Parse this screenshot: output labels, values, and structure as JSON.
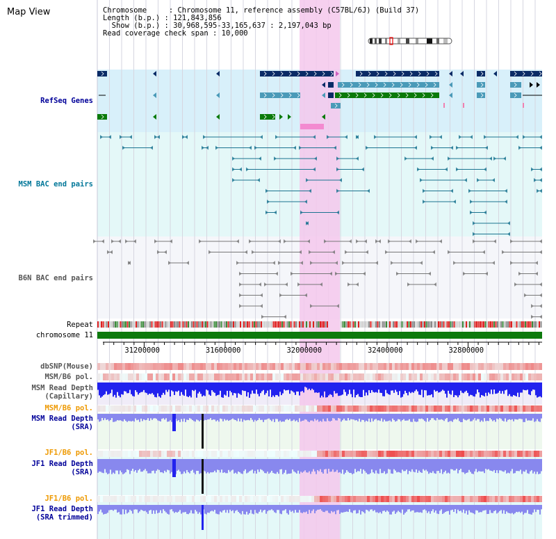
{
  "window": {
    "title": "Map View"
  },
  "info": {
    "chromosome_key": "Chromosome     ",
    "chromosome_val": ": Chromosome 11, reference assembly (C57BL/6J) (Build 37)",
    "length_key": "Length (b.p.) ",
    "length_val": ": 121,843,856",
    "show_key": "  Show (b.p.) ",
    "show_val": ": 30,968,595-33,165,637 : 2,197,043 bp",
    "span_key": "Read coverage check span",
    "span_val": " : 10,000"
  },
  "tracks": {
    "refseq": "RefSeq Genes",
    "msm_bac": "MSM BAC end pairs",
    "b6n_bac": "B6N BAC end pairs",
    "repeat": "Repeat",
    "chrom": "chromosome 11",
    "dbsnp": "dbSNP(Mouse)",
    "msm_b6_pol_1": "MSM/B6 pol.",
    "msm_depth_cap_1": "MSM Read Depth",
    "msm_depth_cap_2": "(Capillary)",
    "msm_b6_pol_2": "MSM/B6 pol.",
    "msm_depth_sra_1": "MSM Read Depth",
    "msm_depth_sra_2": "(SRA)",
    "jf1_b6_pol_1": "JF1/B6 pol.",
    "jf1_depth_sra_1": "JF1 Read Depth",
    "jf1_depth_sra_2": "(SRA)",
    "jf1_b6_pol_2": "JF1/B6 pol.",
    "jf1_depth_trim_1": "JF1 Read Depth",
    "jf1_depth_trim_2": "(SRA trimmed)"
  },
  "axis": {
    "start_bp": 30968595,
    "end_bp": 33165637,
    "ticks": [
      {
        "bp": 31200000,
        "label": "31200000"
      },
      {
        "bp": 31600000,
        "label": "31600000"
      },
      {
        "bp": 32000000,
        "label": "32000000"
      },
      {
        "bp": 32400000,
        "label": "32400000"
      },
      {
        "bp": 32800000,
        "label": "32800000"
      }
    ]
  },
  "colors": {
    "highlight": "#f5c8ec",
    "refseq_bg": "#d8f0fa",
    "bac_bg": "#e4f8f8",
    "b6n_bg": "#f5f6fa",
    "gene_navy": "#0a2b66",
    "gene_teal": "#4a9ab8",
    "gene_green": "#0a7a0a",
    "bac_teal": "#1a7390",
    "bac_gray": "#777777",
    "chrom_green": "#0d7a0d",
    "depth_blue": "#2222ee",
    "depth_light": "#8888ee",
    "pol_red": "#ee3333",
    "label_navy": "#000099",
    "label_teal": "#007799",
    "label_gray": "#555555",
    "label_orange": "#ee9900"
  }
}
